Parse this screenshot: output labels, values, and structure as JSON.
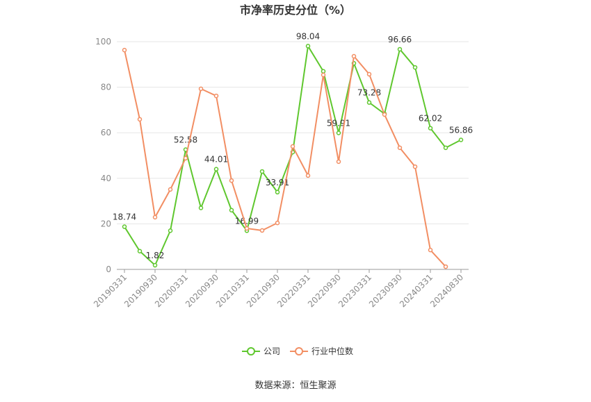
{
  "chart_data": {
    "type": "line",
    "title": "市净率历史分位（%）",
    "categories": [
      "20190331",
      null,
      "20190930",
      null,
      "20200331",
      null,
      "20200930",
      null,
      "20210331",
      null,
      "20210930",
      null,
      "20220331",
      null,
      "20220930",
      null,
      "20230331",
      null,
      "20230930",
      null,
      "20240331",
      null,
      "20240830"
    ],
    "series": [
      {
        "name": "公司",
        "color": "#5fc72e",
        "values": [
          18.74,
          8,
          1.82,
          17,
          52.58,
          27,
          44.01,
          26,
          16.99,
          43,
          33.91,
          51.5,
          98.04,
          87,
          59.91,
          90.5,
          73.28,
          68.3,
          96.66,
          88.7,
          62.02,
          53.4,
          56.86
        ],
        "value_labels": [
          "18.74",
          null,
          "1.82",
          null,
          "52.58",
          null,
          "44.01",
          null,
          "16.99",
          null,
          "33.91",
          null,
          "98.04",
          null,
          "59.91",
          null,
          "73.28",
          null,
          "96.66",
          null,
          "62.02",
          null,
          "56.86"
        ]
      },
      {
        "name": "行业中位数",
        "color": "#f28e63",
        "values": [
          96.3,
          65.9,
          22.9,
          35.1,
          48.8,
          79.3,
          76.2,
          39,
          18,
          17.1,
          20.4,
          54,
          41.2,
          85.4,
          47.3,
          93.6,
          85.7,
          68,
          53.4,
          45.1,
          8.5,
          1.2,
          null
        ]
      }
    ],
    "ylim": [
      0,
      100
    ],
    "yticks": [
      0,
      20,
      40,
      60,
      80,
      100
    ],
    "grid": true,
    "source": "数据来源：恒生聚源"
  }
}
